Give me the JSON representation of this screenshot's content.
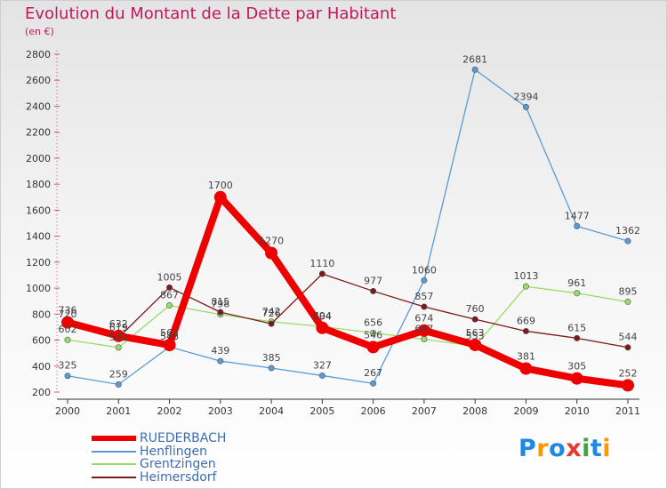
{
  "header": {
    "title": "Evolution du Montant de la Dette par Habitant",
    "subtitle": "(en €)"
  },
  "logo": {
    "text": "Proxiti",
    "colors": [
      "#1e88e5",
      "#ff9800",
      "#43a047",
      "#e53935"
    ]
  },
  "chart_data": {
    "type": "line",
    "x": [
      "2000",
      "2001",
      "2002",
      "2003",
      "2004",
      "2005",
      "2006",
      "2007",
      "2008",
      "2009",
      "2010",
      "2011"
    ],
    "ylim": [
      200,
      2800
    ],
    "yticks": [
      200,
      400,
      600,
      800,
      1000,
      1200,
      1400,
      1600,
      1800,
      2000,
      2200,
      2400,
      2600,
      2800
    ],
    "grid": false,
    "legend": "bottom-left",
    "series": [
      {
        "name": "RUEDERBACH",
        "color": "#ee0000",
        "emphasis": true,
        "values": [
          736,
          632,
          562,
          1700,
          1270,
          694,
          546,
          674,
          563,
          381,
          305,
          252
        ]
      },
      {
        "name": "Henflingen",
        "color": "#5b9bd5",
        "values": [
          325,
          259,
          548,
          439,
          385,
          327,
          267,
          1060,
          2681,
          2394,
          1477,
          1362
        ]
      },
      {
        "name": "Grentzingen",
        "color": "#99dd66",
        "values": [
          602,
          543,
          867,
          798,
          742,
          704,
          656,
          607,
          553,
          1013,
          961,
          895
        ]
      },
      {
        "name": "Heimersdorf",
        "color": "#7a1a1a",
        "values": [
          720,
          619,
          1005,
          815,
          726,
          1110,
          977,
          857,
          760,
          669,
          615,
          544
        ]
      }
    ]
  }
}
